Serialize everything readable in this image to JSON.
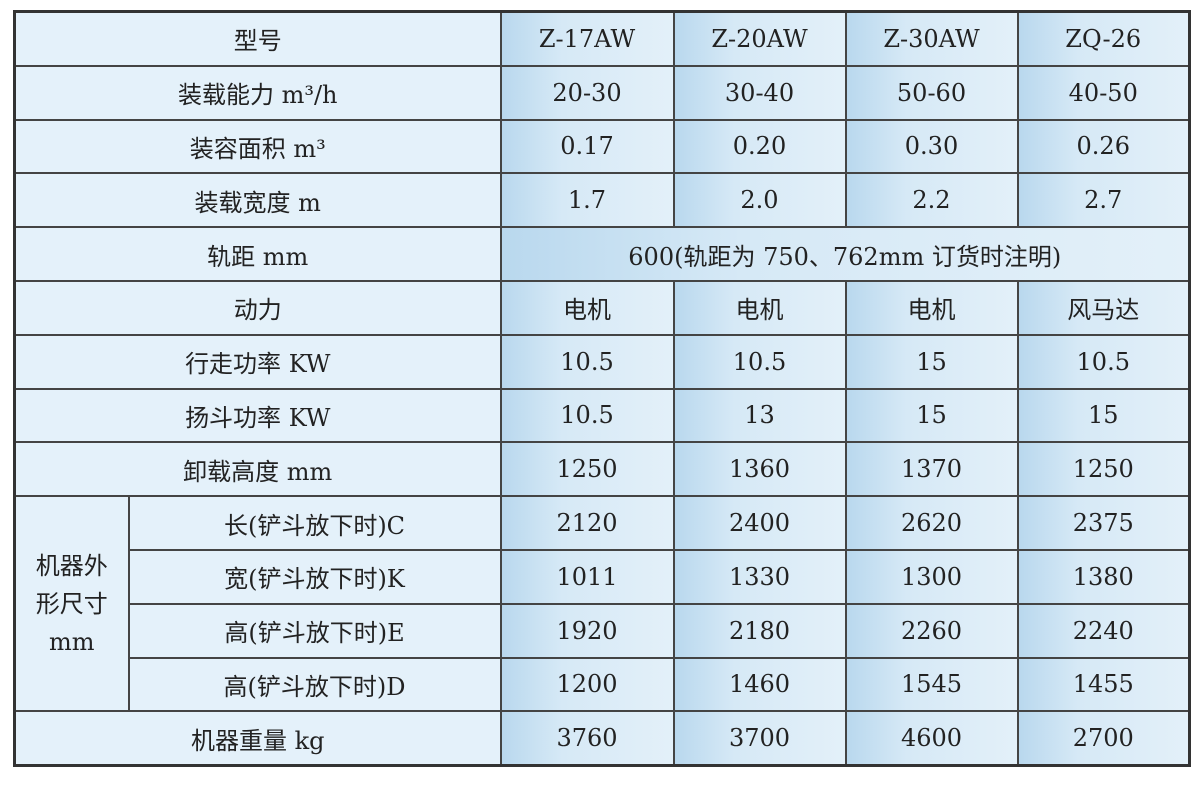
{
  "header": {
    "label": "型号",
    "models": [
      "Z-17AW",
      "Z-20AW",
      "Z-30AW",
      "ZQ-26"
    ]
  },
  "rows": [
    {
      "label": "装载能力 m³/h",
      "values": [
        "20-30",
        "30-40",
        "50-60",
        "40-50"
      ]
    },
    {
      "label": "装容面积 m³",
      "values": [
        "0.17",
        "0.20",
        "0.30",
        "0.26"
      ]
    },
    {
      "label": "装载宽度 m",
      "values": [
        "1.7",
        "2.0",
        "2.2",
        "2.7"
      ]
    }
  ],
  "gauge": {
    "label": "轨距 mm",
    "value": "600(轨距为 750、762mm 订货时注明)"
  },
  "rows2": [
    {
      "label": "动力",
      "values": [
        "电机",
        "电机",
        "电机",
        "风马达"
      ]
    },
    {
      "label": "行走功率 KW",
      "values": [
        "10.5",
        "10.5",
        "15",
        "10.5"
      ]
    },
    {
      "label": "扬斗功率 KW",
      "values": [
        "10.5",
        "13",
        "15",
        "15"
      ]
    },
    {
      "label": "卸载高度 mm",
      "values": [
        "1250",
        "1360",
        "1370",
        "1250"
      ]
    }
  ],
  "dimensions": {
    "group_label": [
      "机器外",
      "形尺寸",
      "mm"
    ],
    "rows": [
      {
        "label": "长(铲斗放下时)C",
        "values": [
          "2120",
          "2400",
          "2620",
          "2375"
        ]
      },
      {
        "label": "宽(铲斗放下时)K",
        "values": [
          "1011",
          "1330",
          "1300",
          "1380"
        ]
      },
      {
        "label": "高(铲斗放下时)E",
        "values": [
          "1920",
          "2180",
          "2260",
          "2240"
        ]
      },
      {
        "label": "高(铲斗放下时)D",
        "values": [
          "1200",
          "1460",
          "1545",
          "1455"
        ]
      }
    ]
  },
  "weight": {
    "label": "机器重量 kg",
    "values": [
      "3760",
      "3700",
      "4600",
      "2700"
    ]
  },
  "colors": {
    "label_bg": "#e4f1fa",
    "value_bg": "#c6e0f2",
    "border": "#333333"
  }
}
